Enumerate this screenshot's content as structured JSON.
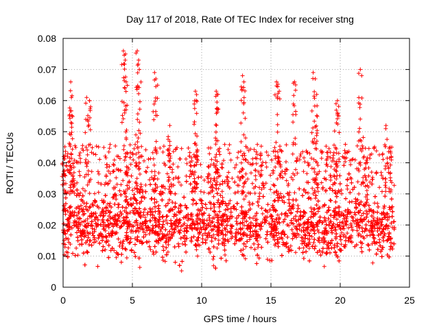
{
  "chart_data": {
    "type": "scatter",
    "title": "Day 117 of 2018, Rate Of TEC Index for receiver stng",
    "xlabel": "GPS time / hours",
    "ylabel": "ROTI / TECUs",
    "xlim": [
      0,
      25
    ],
    "ylim": [
      0,
      0.08
    ],
    "xticks": [
      0,
      5,
      10,
      15,
      20,
      25
    ],
    "yticks": [
      0,
      0.01,
      0.02,
      0.03,
      0.04,
      0.05,
      0.06,
      0.07,
      0.08
    ],
    "xtick_labels": [
      "0",
      "5",
      "10",
      "15",
      "20",
      "25"
    ],
    "ytick_labels": [
      "0",
      "0.01",
      "0.02",
      "0.03",
      "0.04",
      "0.05",
      "0.06",
      "0.07",
      "0.08"
    ],
    "grid": true,
    "marker": "+",
    "color": "#ff0000",
    "x_range_data": [
      0,
      23.9
    ],
    "typical_band": [
      0.005,
      0.045
    ],
    "bulk_center": 0.019,
    "spikes": [
      {
        "x": 0.05,
        "y": 0.042
      },
      {
        "x": 0.55,
        "y": 0.066
      },
      {
        "x": 0.6,
        "y": 0.061
      },
      {
        "x": 1.7,
        "y": 0.061
      },
      {
        "x": 1.9,
        "y": 0.06
      },
      {
        "x": 4.35,
        "y": 0.076
      },
      {
        "x": 4.5,
        "y": 0.075
      },
      {
        "x": 4.55,
        "y": 0.066
      },
      {
        "x": 5.35,
        "y": 0.076
      },
      {
        "x": 5.45,
        "y": 0.073
      },
      {
        "x": 5.5,
        "y": 0.07
      },
      {
        "x": 6.6,
        "y": 0.069
      },
      {
        "x": 6.7,
        "y": 0.067
      },
      {
        "x": 7.7,
        "y": 0.052
      },
      {
        "x": 9.55,
        "y": 0.063
      },
      {
        "x": 9.6,
        "y": 0.06
      },
      {
        "x": 11.05,
        "y": 0.063
      },
      {
        "x": 11.1,
        "y": 0.062
      },
      {
        "x": 12.95,
        "y": 0.068
      },
      {
        "x": 13.05,
        "y": 0.066
      },
      {
        "x": 15.4,
        "y": 0.066
      },
      {
        "x": 15.6,
        "y": 0.063
      },
      {
        "x": 16.7,
        "y": 0.066
      },
      {
        "x": 18.05,
        "y": 0.069
      },
      {
        "x": 18.2,
        "y": 0.067
      },
      {
        "x": 18.3,
        "y": 0.062
      },
      {
        "x": 19.7,
        "y": 0.059
      },
      {
        "x": 19.8,
        "y": 0.06
      },
      {
        "x": 21.45,
        "y": 0.07
      },
      {
        "x": 21.55,
        "y": 0.068
      },
      {
        "x": 23.3,
        "y": 0.052
      },
      {
        "x": 23.6,
        "y": 0.045
      }
    ]
  }
}
